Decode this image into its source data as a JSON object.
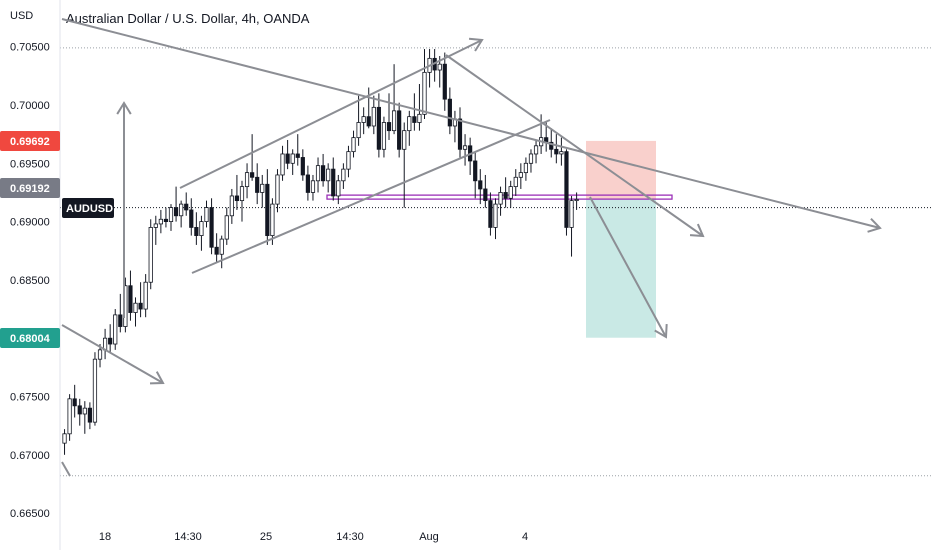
{
  "header": {
    "currency_label": "USD",
    "title": "Australian Dollar / U.S. Dollar, 4h, OANDA"
  },
  "colors": {
    "up": "#131722",
    "down": "#131722",
    "drawing": "#8c8e94",
    "stop_zone": "#f9d0cc",
    "target_zone": "#c9e9e5",
    "stop_badge": "#f0483f",
    "target_badge": "#22a08f",
    "symbol_badge": "#131722",
    "price_badge": "#787b86",
    "level_line": "#9b30b8"
  },
  "badges": {
    "stop": "0.69692",
    "current": "0.69192",
    "symbol": "AUDUSD",
    "target": "0.68004"
  },
  "chart_data": {
    "type": "candlestick",
    "title": "Australian Dollar / U.S. Dollar, 4h, OANDA",
    "ylabel": "USD",
    "ylim": [
      0.6645,
      0.7082
    ],
    "y_ticks": [
      "0.70500",
      "0.70000",
      "0.69500",
      "0.69000",
      "0.68500",
      "0.68000",
      "0.67500",
      "0.67000",
      "0.66500"
    ],
    "x_ticks": [
      "18",
      "14:30",
      "25",
      "14:30",
      "Aug",
      "4"
    ],
    "grid": "off",
    "reference_levels": {
      "top_dotted": 0.7049,
      "current_dotted": 0.6912,
      "bottom_dotted": 0.6682
    },
    "candles": [
      [
        0.671,
        0.6722,
        0.67,
        0.6718
      ],
      [
        0.6718,
        0.6752,
        0.6712,
        0.6748
      ],
      [
        0.6748,
        0.676,
        0.6732,
        0.6742
      ],
      [
        0.6742,
        0.6748,
        0.6725,
        0.6735
      ],
      [
        0.6735,
        0.6746,
        0.6718,
        0.674
      ],
      [
        0.674,
        0.6745,
        0.6722,
        0.6728
      ],
      [
        0.6728,
        0.6788,
        0.6725,
        0.6782
      ],
      [
        0.6782,
        0.6795,
        0.6775,
        0.679
      ],
      [
        0.679,
        0.6808,
        0.6782,
        0.68
      ],
      [
        0.68,
        0.6812,
        0.6788,
        0.6795
      ],
      [
        0.6795,
        0.6825,
        0.679,
        0.682
      ],
      [
        0.682,
        0.6838,
        0.6805,
        0.681
      ],
      [
        0.681,
        0.6852,
        0.6805,
        0.6845
      ],
      [
        0.6845,
        0.6858,
        0.6815,
        0.6822
      ],
      [
        0.6822,
        0.6835,
        0.681,
        0.683
      ],
      [
        0.683,
        0.6848,
        0.6818,
        0.6825
      ],
      [
        0.6825,
        0.6855,
        0.6818,
        0.6848
      ],
      [
        0.6848,
        0.6902,
        0.6842,
        0.6895
      ],
      [
        0.6895,
        0.6905,
        0.688,
        0.6898
      ],
      [
        0.6898,
        0.691,
        0.689,
        0.6902
      ],
      [
        0.6902,
        0.6912,
        0.6895,
        0.69
      ],
      [
        0.69,
        0.6915,
        0.6892,
        0.6912
      ],
      [
        0.6912,
        0.693,
        0.69,
        0.6905
      ],
      [
        0.6905,
        0.6918,
        0.6895,
        0.6915
      ],
      [
        0.6915,
        0.6925,
        0.6905,
        0.691
      ],
      [
        0.691,
        0.692,
        0.6888,
        0.6895
      ],
      [
        0.6895,
        0.6908,
        0.688,
        0.6888
      ],
      [
        0.6888,
        0.6905,
        0.6875,
        0.69
      ],
      [
        0.69,
        0.6918,
        0.6895,
        0.6912
      ],
      [
        0.6912,
        0.692,
        0.6872,
        0.6878
      ],
      [
        0.6878,
        0.689,
        0.6865,
        0.6872
      ],
      [
        0.6872,
        0.6888,
        0.686,
        0.6885
      ],
      [
        0.6885,
        0.6912,
        0.688,
        0.6905
      ],
      [
        0.6905,
        0.6928,
        0.6898,
        0.6922
      ],
      [
        0.6922,
        0.694,
        0.691,
        0.6918
      ],
      [
        0.6918,
        0.6935,
        0.69,
        0.693
      ],
      [
        0.693,
        0.695,
        0.692,
        0.6942
      ],
      [
        0.6942,
        0.6975,
        0.6935,
        0.6938
      ],
      [
        0.6938,
        0.695,
        0.6915,
        0.6925
      ],
      [
        0.6925,
        0.694,
        0.6912,
        0.6932
      ],
      [
        0.6932,
        0.6945,
        0.688,
        0.6888
      ],
      [
        0.6888,
        0.692,
        0.688,
        0.6915
      ],
      [
        0.6915,
        0.6945,
        0.6908,
        0.694
      ],
      [
        0.694,
        0.6965,
        0.6935,
        0.6958
      ],
      [
        0.6958,
        0.697,
        0.6945,
        0.695
      ],
      [
        0.695,
        0.6962,
        0.694,
        0.6958
      ],
      [
        0.6958,
        0.6975,
        0.6948,
        0.6955
      ],
      [
        0.6955,
        0.6962,
        0.6935,
        0.694
      ],
      [
        0.694,
        0.6948,
        0.6918,
        0.6925
      ],
      [
        0.6925,
        0.694,
        0.6918,
        0.6935
      ],
      [
        0.6935,
        0.6955,
        0.6925,
        0.6948
      ],
      [
        0.6948,
        0.6958,
        0.693,
        0.6935
      ],
      [
        0.6935,
        0.695,
        0.6925,
        0.6945
      ],
      [
        0.6945,
        0.6955,
        0.6918,
        0.6922
      ],
      [
        0.6922,
        0.694,
        0.6915,
        0.6935
      ],
      [
        0.6935,
        0.695,
        0.6928,
        0.6945
      ],
      [
        0.6945,
        0.6965,
        0.6938,
        0.696
      ],
      [
        0.696,
        0.6978,
        0.6955,
        0.6972
      ],
      [
        0.6972,
        0.7008,
        0.6965,
        0.6985
      ],
      [
        0.6985,
        0.6998,
        0.6975,
        0.699
      ],
      [
        0.699,
        0.7015,
        0.698,
        0.6982
      ],
      [
        0.6982,
        0.7008,
        0.6975,
        0.6998
      ],
      [
        0.6998,
        0.701,
        0.6955,
        0.6962
      ],
      [
        0.6962,
        0.699,
        0.6955,
        0.6985
      ],
      [
        0.6985,
        0.701,
        0.697,
        0.6978
      ],
      [
        0.6978,
        0.7035,
        0.6975,
        0.6995
      ],
      [
        0.6995,
        0.7002,
        0.6955,
        0.6962
      ],
      [
        0.6962,
        0.6985,
        0.6912,
        0.6978
      ],
      [
        0.6978,
        0.6995,
        0.6965,
        0.699
      ],
      [
        0.699,
        0.701,
        0.6978,
        0.6985
      ],
      [
        0.6985,
        0.7018,
        0.6978,
        0.6992
      ],
      [
        0.6992,
        0.7048,
        0.6988,
        0.7028
      ],
      [
        0.7028,
        0.7048,
        0.7015,
        0.704
      ],
      [
        0.704,
        0.7048,
        0.702,
        0.703
      ],
      [
        0.703,
        0.7042,
        0.7015,
        0.7035
      ],
      [
        0.7035,
        0.7045,
        0.6995,
        0.7005
      ],
      [
        0.7005,
        0.7015,
        0.6975,
        0.6982
      ],
      [
        0.6982,
        0.6995,
        0.6968,
        0.6988
      ],
      [
        0.6988,
        0.6998,
        0.6955,
        0.6962
      ],
      [
        0.6962,
        0.6975,
        0.6948,
        0.6965
      ],
      [
        0.6965,
        0.6972,
        0.694,
        0.6952
      ],
      [
        0.6952,
        0.696,
        0.692,
        0.6935
      ],
      [
        0.6935,
        0.6945,
        0.6915,
        0.6928
      ],
      [
        0.6928,
        0.694,
        0.6912,
        0.6918
      ],
      [
        0.6918,
        0.6925,
        0.6888,
        0.6895
      ],
      [
        0.6895,
        0.692,
        0.6885,
        0.6915
      ],
      [
        0.6915,
        0.693,
        0.6905,
        0.6925
      ],
      [
        0.6925,
        0.6938,
        0.6912,
        0.692
      ],
      [
        0.692,
        0.6935,
        0.6912,
        0.693
      ],
      [
        0.693,
        0.6945,
        0.6922,
        0.6938
      ],
      [
        0.6938,
        0.695,
        0.6928,
        0.6942
      ],
      [
        0.6942,
        0.6955,
        0.6935,
        0.695
      ],
      [
        0.695,
        0.6962,
        0.6942,
        0.6958
      ],
      [
        0.6958,
        0.697,
        0.695,
        0.6965
      ],
      [
        0.6965,
        0.6992,
        0.6958,
        0.6972
      ],
      [
        0.6972,
        0.6985,
        0.696,
        0.6968
      ],
      [
        0.6968,
        0.698,
        0.6955,
        0.6962
      ],
      [
        0.6962,
        0.6975,
        0.695,
        0.6958
      ],
      [
        0.6958,
        0.6972,
        0.6948,
        0.696
      ],
      [
        0.696,
        0.6962,
        0.6888,
        0.6895
      ],
      [
        0.6895,
        0.6922,
        0.687,
        0.6918
      ],
      [
        0.6918,
        0.6925,
        0.691,
        0.6919
      ]
    ]
  }
}
